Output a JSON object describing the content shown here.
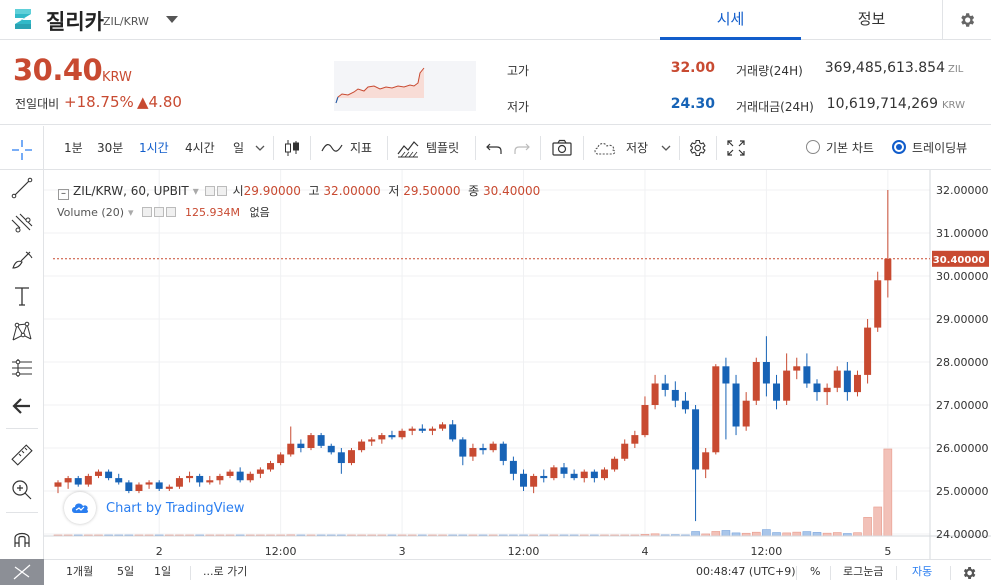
{
  "header": {
    "coin_name": "질리카",
    "coin_pair": "ZIL/KRW",
    "tabs": [
      "시세",
      "정보"
    ]
  },
  "summary": {
    "price": "30.40",
    "unit": "KRW",
    "change_label": "전일대비",
    "change_pct": "+18.75%",
    "change_abs": "▲4.80",
    "high_label": "고가",
    "high_value": "32.00",
    "low_label": "저가",
    "low_value": "24.30",
    "volume_label": "거래량(24H)",
    "volume_value": "369,485,613.854",
    "volume_unit": "ZIL",
    "amount_label": "거래대금(24H)",
    "amount_value": "10,619,714,269",
    "amount_unit": "KRW"
  },
  "toolbar": {
    "intervals": [
      "1분",
      "30분",
      "1시간",
      "4시간",
      "일"
    ],
    "active_interval": "1시간",
    "indicators_label": "지표",
    "templates_label": "템플릿",
    "save_label": "저장",
    "basic_chart_label": "기본 차트",
    "trading_view_label": "트레이딩뷰"
  },
  "legend": {
    "symbol": "ZIL/KRW, 60, UPBIT",
    "open_label": "시",
    "open_value": "29.90000",
    "high_label": "고",
    "high_value": "32.00000",
    "low_label": "저",
    "low_value": "29.50000",
    "close_label": "종",
    "close_value": "30.40000",
    "volume_label": "Volume (20)",
    "volume_value": "125.934M",
    "volume_extra": "없음"
  },
  "branding": {
    "text": "Chart by TradingView"
  },
  "bottom": {
    "ranges": [
      "1개월",
      "5일",
      "1일"
    ],
    "goto_label": "...로 가기",
    "time": "00:48:47 (UTC+9)",
    "percent": "%",
    "log": "로그눈금",
    "auto": "자동"
  },
  "colors": {
    "up": "#c84a31",
    "down": "#1763b6",
    "accent": "#115dcb",
    "vol_up": "#f2c1b8",
    "vol_down": "#a9c6ea"
  },
  "chart_data": {
    "type": "candlestick",
    "symbol": "ZIL/KRW, 60, UPBIT",
    "ylim": [
      23.8,
      32.3
    ],
    "y_ticks": [
      "32.00000",
      "31.00000",
      "30.00000",
      "29.00000",
      "28.00000",
      "27.00000",
      "26.00000",
      "25.00000",
      "24.00000"
    ],
    "x_ticks": [
      {
        "label": "2",
        "index": 10
      },
      {
        "label": "12:00",
        "index": 22
      },
      {
        "label": "3",
        "index": 34
      },
      {
        "label": "12:00",
        "index": 46
      },
      {
        "label": "4",
        "index": 58
      },
      {
        "label": "12:00",
        "index": 70
      },
      {
        "label": "5",
        "index": 82
      }
    ],
    "last_price": 30.4,
    "last_price_label": "30.40000",
    "candles": [
      [
        25.1,
        25.25,
        24.95,
        25.2
      ],
      [
        25.2,
        25.35,
        25.05,
        25.3
      ],
      [
        25.3,
        25.35,
        25.1,
        25.15
      ],
      [
        25.15,
        25.4,
        25.1,
        25.35
      ],
      [
        25.35,
        25.5,
        25.3,
        25.45
      ],
      [
        25.45,
        25.5,
        25.25,
        25.3
      ],
      [
        25.3,
        25.4,
        25.15,
        25.2
      ],
      [
        25.2,
        25.25,
        24.95,
        25.0
      ],
      [
        25.0,
        25.2,
        24.95,
        25.15
      ],
      [
        25.15,
        25.25,
        25.05,
        25.2
      ],
      [
        25.2,
        25.25,
        25.0,
        25.05
      ],
      [
        25.05,
        25.15,
        25.0,
        25.1
      ],
      [
        25.1,
        25.35,
        25.05,
        25.3
      ],
      [
        25.3,
        25.45,
        25.2,
        25.35
      ],
      [
        25.35,
        25.4,
        25.1,
        25.2
      ],
      [
        25.2,
        25.35,
        25.15,
        25.25
      ],
      [
        25.25,
        25.4,
        25.15,
        25.35
      ],
      [
        25.35,
        25.5,
        25.3,
        25.45
      ],
      [
        25.45,
        25.55,
        25.2,
        25.25
      ],
      [
        25.25,
        25.45,
        25.2,
        25.4
      ],
      [
        25.4,
        25.55,
        25.3,
        25.5
      ],
      [
        25.5,
        25.7,
        25.45,
        25.65
      ],
      [
        25.65,
        25.9,
        25.6,
        25.85
      ],
      [
        25.85,
        26.5,
        25.8,
        26.1
      ],
      [
        26.1,
        26.2,
        25.9,
        26.0
      ],
      [
        26.0,
        26.35,
        25.95,
        26.3
      ],
      [
        26.3,
        26.35,
        26.0,
        26.05
      ],
      [
        26.05,
        26.1,
        25.85,
        25.9
      ],
      [
        25.9,
        26.0,
        25.4,
        25.65
      ],
      [
        25.65,
        26.0,
        25.6,
        25.95
      ],
      [
        25.95,
        26.2,
        25.9,
        26.15
      ],
      [
        26.15,
        26.25,
        26.05,
        26.2
      ],
      [
        26.2,
        26.35,
        26.1,
        26.3
      ],
      [
        26.3,
        26.4,
        26.2,
        26.25
      ],
      [
        26.25,
        26.45,
        26.2,
        26.4
      ],
      [
        26.4,
        26.5,
        26.3,
        26.45
      ],
      [
        26.45,
        26.55,
        26.35,
        26.4
      ],
      [
        26.4,
        26.5,
        26.3,
        26.45
      ],
      [
        26.45,
        26.6,
        26.4,
        26.55
      ],
      [
        26.55,
        26.65,
        26.15,
        26.2
      ],
      [
        26.2,
        26.25,
        25.6,
        25.8
      ],
      [
        25.8,
        26.1,
        25.7,
        26.0
      ],
      [
        26.0,
        26.1,
        25.85,
        25.95
      ],
      [
        25.95,
        26.15,
        25.9,
        26.1
      ],
      [
        26.1,
        26.15,
        25.6,
        25.7
      ],
      [
        25.7,
        25.8,
        25.25,
        25.4
      ],
      [
        25.4,
        25.5,
        25.0,
        25.1
      ],
      [
        25.1,
        25.4,
        24.95,
        25.35
      ],
      [
        25.35,
        25.5,
        25.2,
        25.3
      ],
      [
        25.3,
        25.6,
        25.25,
        25.55
      ],
      [
        25.55,
        25.65,
        25.3,
        25.4
      ],
      [
        25.4,
        25.5,
        25.25,
        25.3
      ],
      [
        25.3,
        25.5,
        25.2,
        25.45
      ],
      [
        25.45,
        25.5,
        25.2,
        25.3
      ],
      [
        25.3,
        25.55,
        25.25,
        25.5
      ],
      [
        25.5,
        25.8,
        25.45,
        25.75
      ],
      [
        25.75,
        26.2,
        25.7,
        26.1
      ],
      [
        26.1,
        26.4,
        26.0,
        26.3
      ],
      [
        26.3,
        27.2,
        26.25,
        27.0
      ],
      [
        27.0,
        27.7,
        26.9,
        27.5
      ],
      [
        27.5,
        27.7,
        27.2,
        27.35
      ],
      [
        27.35,
        27.55,
        26.95,
        27.1
      ],
      [
        27.1,
        27.3,
        26.8,
        26.9
      ],
      [
        26.9,
        27.0,
        24.3,
        25.5
      ],
      [
        25.5,
        26.0,
        25.3,
        25.9
      ],
      [
        25.9,
        27.95,
        25.85,
        27.9
      ],
      [
        27.9,
        28.1,
        26.2,
        27.5
      ],
      [
        27.5,
        27.7,
        26.3,
        26.5
      ],
      [
        26.5,
        27.3,
        26.4,
        27.1
      ],
      [
        27.1,
        28.1,
        27.0,
        28.0
      ],
      [
        28.0,
        28.6,
        27.2,
        27.5
      ],
      [
        27.5,
        27.7,
        26.9,
        27.1
      ],
      [
        27.1,
        28.2,
        27.0,
        27.8
      ],
      [
        27.8,
        28.1,
        27.6,
        27.9
      ],
      [
        27.9,
        28.2,
        27.4,
        27.5
      ],
      [
        27.5,
        27.6,
        27.1,
        27.3
      ],
      [
        27.3,
        27.5,
        27.0,
        27.4
      ],
      [
        27.4,
        27.9,
        27.3,
        27.8
      ],
      [
        27.8,
        28.0,
        27.1,
        27.3
      ],
      [
        27.3,
        27.8,
        27.2,
        27.7
      ],
      [
        27.7,
        29.0,
        27.5,
        28.8
      ],
      [
        28.8,
        30.1,
        28.7,
        29.9
      ],
      [
        29.9,
        32.0,
        29.5,
        30.4
      ]
    ],
    "volumes": [
      0.6,
      0.5,
      0.4,
      0.5,
      0.6,
      0.4,
      0.5,
      0.7,
      0.4,
      0.5,
      0.3,
      0.4,
      0.5,
      0.6,
      0.5,
      0.4,
      0.5,
      0.4,
      0.6,
      0.5,
      0.6,
      0.7,
      0.8,
      1.6,
      0.6,
      0.9,
      0.7,
      0.5,
      1.0,
      0.6,
      0.7,
      0.5,
      0.6,
      0.5,
      0.6,
      0.5,
      0.4,
      0.5,
      0.6,
      0.9,
      1.2,
      0.7,
      0.6,
      0.8,
      0.9,
      1.1,
      1.3,
      0.9,
      0.7,
      0.8,
      0.6,
      0.5,
      0.6,
      0.5,
      0.6,
      0.7,
      1.0,
      1.2,
      2.4,
      3.2,
      1.6,
      1.8,
      1.5,
      6.5,
      3.0,
      6.6,
      8.0,
      4.5,
      4.0,
      5.5,
      9.3,
      5.0,
      4.5,
      5.6,
      6.4,
      5.2,
      4.1,
      5.0,
      3.6,
      4.8,
      27.0,
      42.0,
      125.9
    ],
    "volume_max": 125.9
  }
}
